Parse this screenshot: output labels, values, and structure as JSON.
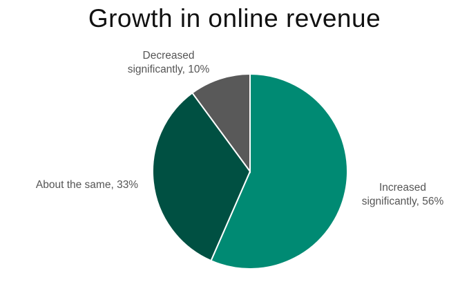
{
  "chart_data": {
    "type": "pie",
    "title": "Growth in online revenue",
    "slices": [
      {
        "label_lines": [
          "Increased",
          "significantly, 56%"
        ],
        "value": 56,
        "color": "#008a73"
      },
      {
        "label_lines": [
          "About the same, 33%"
        ],
        "value": 33,
        "color": "#005042"
      },
      {
        "label_lines": [
          "Decreased",
          "significantly, 10%"
        ],
        "value": 10,
        "color": "#595959"
      }
    ],
    "start_angle_deg": 0,
    "direction": "clockwise"
  }
}
